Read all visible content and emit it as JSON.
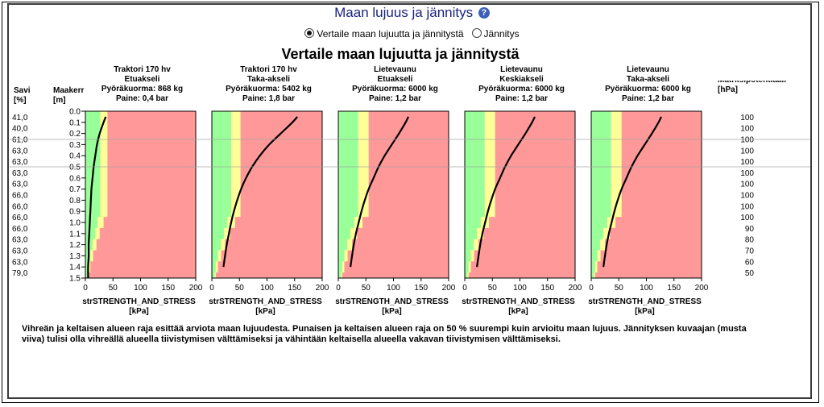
{
  "header": {
    "title": "Maan lujuus ja jännitys",
    "help_icon": "question-circle-icon"
  },
  "radios": {
    "compare_label": "Vertaile maan lujuutta ja jännitystä",
    "stress_label": "Jännitys",
    "selected": "compare"
  },
  "chart_data": {
    "type": "area",
    "title": "Vertaile maan lujuutta ja jännitystä",
    "left_table": {
      "savi_header": [
        "Savi",
        "[%]"
      ],
      "depth_header": [
        "Maakerros",
        "[m]"
      ],
      "savi_values": [
        "41,0",
        "40,0",
        "61,0",
        "63,0",
        "63,0",
        "63,0",
        "63,0",
        "66,0",
        "66,0",
        "66,0",
        "66,0",
        "63,0",
        "63,0",
        "63,0",
        "79,0"
      ]
    },
    "right_table": {
      "header": [
        "Matriisipotentiaali",
        "[hPa]"
      ],
      "values": [
        "100",
        "100",
        "100",
        "100",
        "100",
        "100",
        "100",
        "100",
        "100",
        "100",
        "90",
        "80",
        "70",
        "60",
        "50"
      ]
    },
    "depth_ticks": [
      "0.0",
      "0.1",
      "0.2",
      "0.3",
      "0.4",
      "0.5",
      "0.6",
      "0.7",
      "0.8",
      "0.9",
      "1.0",
      "1.1",
      "1.2",
      "1.3",
      "1.4",
      "1.5"
    ],
    "y_range": [
      0,
      1.5
    ],
    "x_range": [
      0,
      200
    ],
    "x_ticks": [
      "0",
      "50",
      "100",
      "150",
      "200"
    ],
    "xlabel": [
      "strSTRENGTH_AND_STRESS",
      "[kPa]"
    ],
    "colors": {
      "green": "#99ff99",
      "yellow": "#ffff99",
      "red": "#ff9999",
      "curve": "#000000"
    },
    "layer_depths": [
      0,
      0.05,
      0.15,
      0.25,
      0.35,
      0.45,
      0.55,
      0.65,
      0.75,
      0.85,
      0.95,
      1.05,
      1.15,
      1.25,
      1.35,
      1.45,
      1.5
    ],
    "green_yellow_limits": [
      27,
      27,
      27,
      27,
      27,
      27,
      27,
      27,
      27,
      27,
      22,
      18,
      13,
      9,
      6,
      4
    ],
    "yellow_red_limits": [
      40,
      40,
      40,
      40,
      40,
      40,
      40,
      40,
      40,
      40,
      33,
      26,
      20,
      14,
      9,
      6
    ],
    "panels": [
      {
        "header": [
          "Traktori 170 hv",
          "Etuakseli",
          "Pyöräkuorma: 868 kg",
          "Paine: 0,4 bar"
        ],
        "stress_depths": [
          0.05,
          0.1,
          0.2,
          0.3,
          0.4,
          0.5,
          0.6,
          0.7,
          0.8,
          0.9,
          1.0,
          1.1,
          1.2,
          1.3,
          1.4,
          1.5
        ],
        "stress": [
          37,
          33,
          26,
          21,
          18,
          15,
          13,
          11,
          10,
          9,
          8,
          7,
          6,
          6,
          5,
          5
        ],
        "green_yellow": [
          27,
          27,
          27,
          27,
          27,
          27,
          27,
          27,
          27,
          27,
          22,
          18,
          13,
          9,
          6,
          4
        ],
        "yellow_red": [
          40,
          40,
          40,
          40,
          40,
          40,
          40,
          40,
          40,
          40,
          33,
          26,
          20,
          14,
          9,
          6
        ]
      },
      {
        "header": [
          "Traktori 170 hv",
          "Taka-akseli",
          "Pyöräkuorma: 5402 kg",
          "Paine: 1,8 bar"
        ],
        "stress_depths": [
          0.05,
          0.1,
          0.2,
          0.3,
          0.4,
          0.5,
          0.6,
          0.7,
          0.8,
          0.9,
          1.0,
          1.1,
          1.2,
          1.3,
          1.4
        ],
        "stress": [
          155,
          146,
          125,
          104,
          87,
          73,
          62,
          53,
          46,
          40,
          35,
          31,
          27,
          24,
          21
        ],
        "green_yellow": [
          35,
          35,
          35,
          35,
          35,
          35,
          35,
          35,
          35,
          35,
          28,
          22,
          16,
          11,
          7,
          5
        ],
        "yellow_red": [
          52,
          52,
          52,
          52,
          52,
          52,
          52,
          52,
          52,
          52,
          42,
          33,
          24,
          17,
          11,
          7
        ]
      },
      {
        "header": [
          "Lietevaunu",
          "Etuakseli",
          "Pyöräkuorma: 6000 kg",
          "Paine: 1,2 bar"
        ],
        "stress_depths": [
          0.05,
          0.1,
          0.2,
          0.3,
          0.4,
          0.5,
          0.6,
          0.7,
          0.8,
          0.9,
          1.0,
          1.1,
          1.2,
          1.3,
          1.4
        ],
        "stress": [
          127,
          122,
          110,
          97,
          84,
          73,
          64,
          55,
          48,
          42,
          37,
          32,
          28,
          25,
          22
        ],
        "green_yellow": [
          36,
          36,
          36,
          36,
          36,
          36,
          36,
          36,
          36,
          36,
          29,
          22,
          16,
          11,
          7,
          5
        ],
        "yellow_red": [
          55,
          55,
          55,
          55,
          55,
          55,
          55,
          55,
          55,
          55,
          44,
          34,
          25,
          17,
          11,
          7
        ]
      },
      {
        "header": [
          "Lietevaunu",
          "Keskiakseli",
          "Pyöräkuorma: 6000 kg",
          "Paine: 1,2 bar"
        ],
        "stress_depths": [
          0.05,
          0.1,
          0.2,
          0.3,
          0.4,
          0.5,
          0.6,
          0.7,
          0.8,
          0.9,
          1.0,
          1.1,
          1.2,
          1.3,
          1.4
        ],
        "stress": [
          127,
          122,
          110,
          97,
          84,
          73,
          64,
          55,
          48,
          42,
          37,
          32,
          28,
          25,
          22
        ],
        "green_yellow": [
          36,
          36,
          36,
          36,
          36,
          36,
          36,
          36,
          36,
          36,
          29,
          22,
          16,
          11,
          7,
          5
        ],
        "yellow_red": [
          55,
          55,
          55,
          55,
          55,
          55,
          55,
          55,
          55,
          55,
          44,
          34,
          25,
          17,
          11,
          7
        ]
      },
      {
        "header": [
          "Lietevaunu",
          "Taka-akseli",
          "Pyöräkuorma: 6000 kg",
          "Paine: 1,2 bar"
        ],
        "stress_depths": [
          0.05,
          0.1,
          0.2,
          0.3,
          0.4,
          0.5,
          0.6,
          0.7,
          0.8,
          0.9,
          1.0,
          1.1,
          1.2,
          1.3,
          1.4
        ],
        "stress": [
          127,
          122,
          110,
          97,
          84,
          73,
          64,
          55,
          48,
          42,
          37,
          32,
          28,
          25,
          22
        ],
        "green_yellow": [
          36,
          36,
          36,
          36,
          36,
          36,
          36,
          36,
          36,
          36,
          29,
          22,
          16,
          11,
          7,
          5
        ],
        "yellow_red": [
          55,
          55,
          55,
          55,
          55,
          55,
          55,
          55,
          55,
          55,
          44,
          34,
          25,
          17,
          11,
          7
        ]
      }
    ]
  },
  "footnote": "Vihreän ja keltaisen alueen raja esittää arviota maan lujuudesta. Punaisen ja keltaisen alueen raja on 50 % suurempi kuin arvioitu maan lujuus. Jännityksen kuvaajan (musta viiva) tulisi olla vihreällä alueella tiivistymisen välttämiseksi ja vähintään keltaisella alueella vakavan tiivistymisen välttämiseksi."
}
